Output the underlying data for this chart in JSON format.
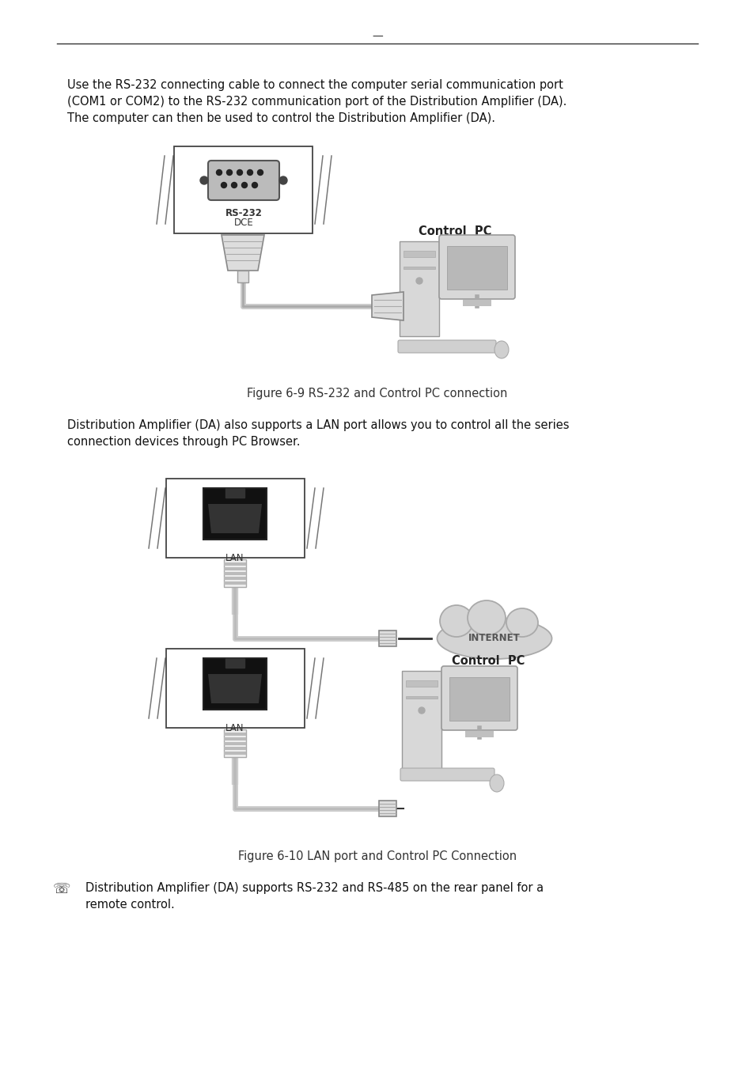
{
  "bg_color": "#ffffff",
  "text_color": "#111111",
  "header_dash": "—",
  "para1": [
    "Use the RS-232 connecting cable to connect the computer serial communication port",
    "(COM1 or COM2) to the RS-232 communication port of the Distribution Amplifier (DA).",
    "The computer can then be used to control the Distribution Amplifier (DA)."
  ],
  "fig1_caption": "Figure 6-9 RS-232 and Control PC connection",
  "para2": [
    "Distribution Amplifier (DA) also supports a LAN port allows you to control all the series",
    "connection devices through PC Browser."
  ],
  "fig2_caption": "Figure 6-10 LAN port and Control PC Connection",
  "bullet1": "Distribution Amplifier (DA) supports RS-232 and RS-485 on the rear panel for a",
  "bullet2": "remote control.",
  "bullet_sym": "☏",
  "line_color": "#333333",
  "gray1": "#cccccc",
  "gray2": "#aaaaaa",
  "gray3": "#888888",
  "gray_dark": "#666666",
  "black": "#111111",
  "white": "#ffffff"
}
